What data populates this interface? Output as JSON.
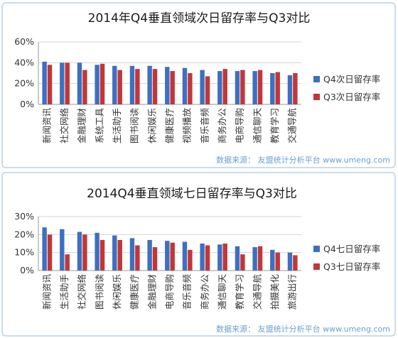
{
  "chart_data": [
    {
      "type": "bar",
      "title": "2014年Q4垂直领域次日留存率与Q3对比",
      "categories": [
        "新闻资讯",
        "社交网络",
        "金融理财",
        "系统工具",
        "生活助手",
        "图书阅读",
        "休闲娱乐",
        "健康医疗",
        "视频播放",
        "音乐音频",
        "商务办公",
        "电商导购",
        "通信聊天",
        "教育学习",
        "交通导航"
      ],
      "series": [
        {
          "name": "Q4次日留存率",
          "values": [
            41,
            40,
            40,
            38,
            37,
            37,
            37,
            36,
            35,
            33,
            32,
            32,
            32,
            30,
            28
          ]
        },
        {
          "name": "Q3次日留存率",
          "values": [
            38,
            40,
            33,
            39,
            33,
            34,
            34,
            32,
            30,
            27,
            34,
            33,
            33,
            31,
            30
          ]
        }
      ],
      "y_ticks": [
        "0%",
        "20%",
        "40%",
        "60%"
      ],
      "ylim": [
        0,
        60
      ],
      "colors": [
        "#3e6fc0",
        "#c0373a"
      ],
      "legend_position": "right",
      "grid": true,
      "source": "数据来源： 友盟统计分析平台 www.umeng.com"
    },
    {
      "type": "bar",
      "title": "2014Q4垂直领域七日留存率与Q3对比",
      "categories": [
        "新闻资讯",
        "生活助手",
        "社交网络",
        "图书阅读",
        "休闲娱乐",
        "健康医疗",
        "金融理财",
        "电商导购",
        "音乐音频",
        "商务办公",
        "通信聊天",
        "教育学习",
        "交通导航",
        "拍摄美化",
        "旅游出行"
      ],
      "series": [
        {
          "name": "Q4七日留存率",
          "values": [
            24,
            23,
            21.5,
            21,
            19.5,
            18,
            17,
            16.5,
            16,
            15,
            14.5,
            13.5,
            13,
            11.5,
            10
          ]
        },
        {
          "name": "Q3七日留存率",
          "values": [
            20,
            9,
            20,
            17,
            17,
            14,
            13,
            15.5,
            11.5,
            14,
            15,
            9,
            13.5,
            10,
            8.5
          ]
        }
      ],
      "y_ticks": [
        "0%",
        "10%",
        "20%",
        "30%"
      ],
      "ylim": [
        0,
        30
      ],
      "colors": [
        "#3e6fc0",
        "#c0373a"
      ],
      "legend_position": "right",
      "grid": true,
      "source": "数据来源： 友盟统计分析平台 www.umeng.com"
    }
  ]
}
